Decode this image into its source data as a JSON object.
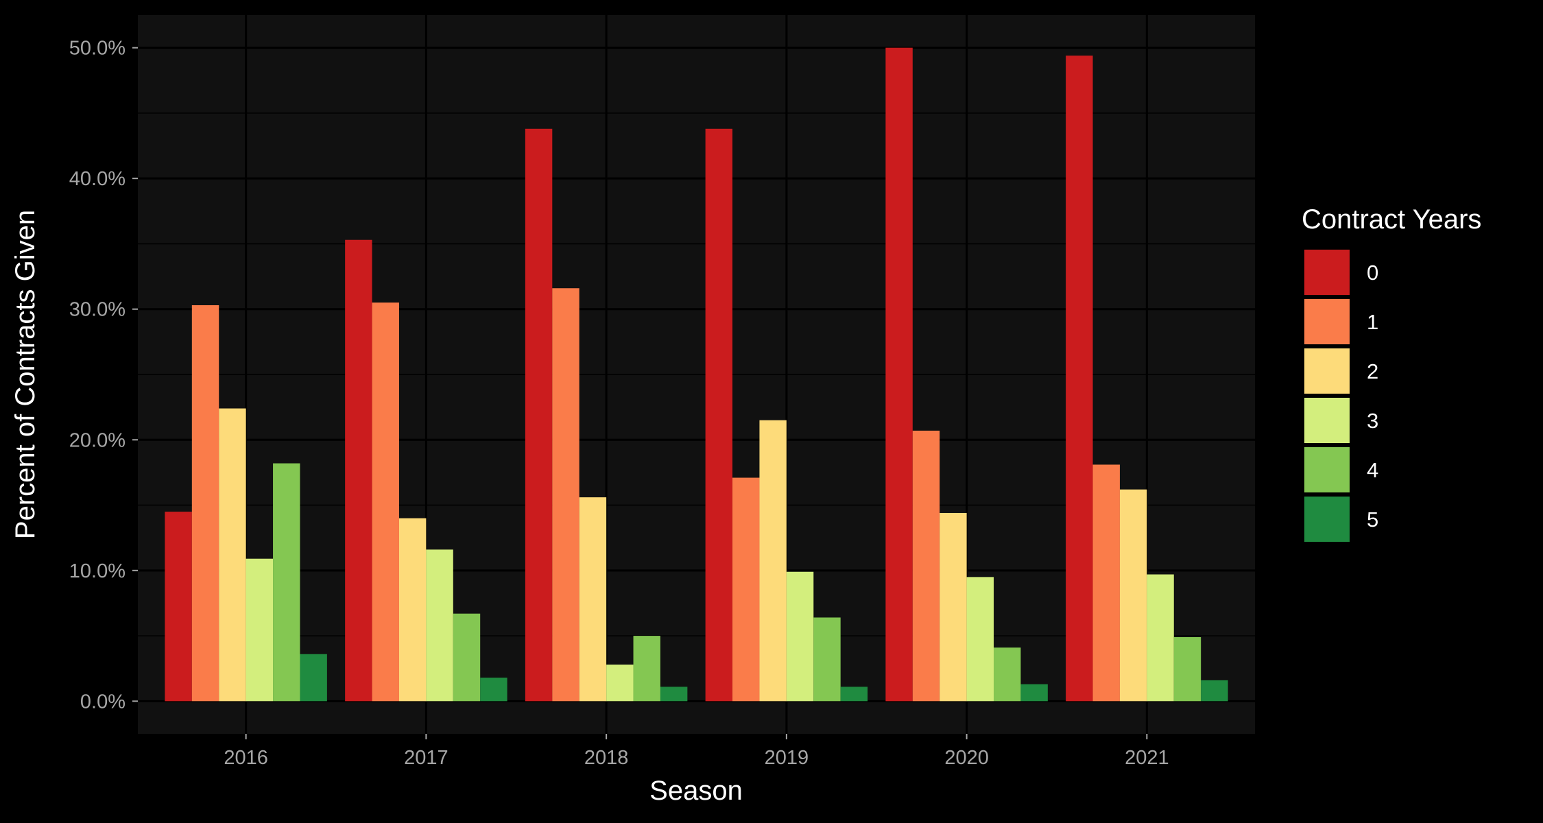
{
  "chart_data": {
    "type": "bar",
    "title": "",
    "xlabel": "Season",
    "ylabel": "Percent of Contracts Given",
    "categories": [
      "2016",
      "2017",
      "2018",
      "2019",
      "2020",
      "2021"
    ],
    "y_ticks": [
      "0.0%",
      "10.0%",
      "20.0%",
      "30.0%",
      "40.0%",
      "50.0%"
    ],
    "ylim": [
      -2.5,
      52.5
    ],
    "grid": true,
    "legend": {
      "title": "Contract Years",
      "position": "right"
    },
    "series": [
      {
        "name": "0",
        "color": "#cb1c1e",
        "values": [
          14.5,
          35.3,
          43.8,
          43.8,
          50.0,
          49.4
        ]
      },
      {
        "name": "1",
        "color": "#fa7c4a",
        "values": [
          30.3,
          30.5,
          31.6,
          17.1,
          20.7,
          18.1
        ]
      },
      {
        "name": "2",
        "color": "#fddb7a",
        "values": [
          22.4,
          14.0,
          15.6,
          21.5,
          14.4,
          16.2
        ]
      },
      {
        "name": "3",
        "color": "#d3ee7d",
        "values": [
          10.9,
          11.6,
          2.8,
          9.9,
          9.5,
          9.7
        ]
      },
      {
        "name": "4",
        "color": "#84c752",
        "values": [
          18.2,
          6.7,
          5.0,
          6.4,
          4.1,
          4.9
        ]
      },
      {
        "name": "5",
        "color": "#1f8b40",
        "values": [
          3.6,
          1.8,
          1.1,
          1.1,
          1.3,
          1.6
        ]
      }
    ]
  }
}
